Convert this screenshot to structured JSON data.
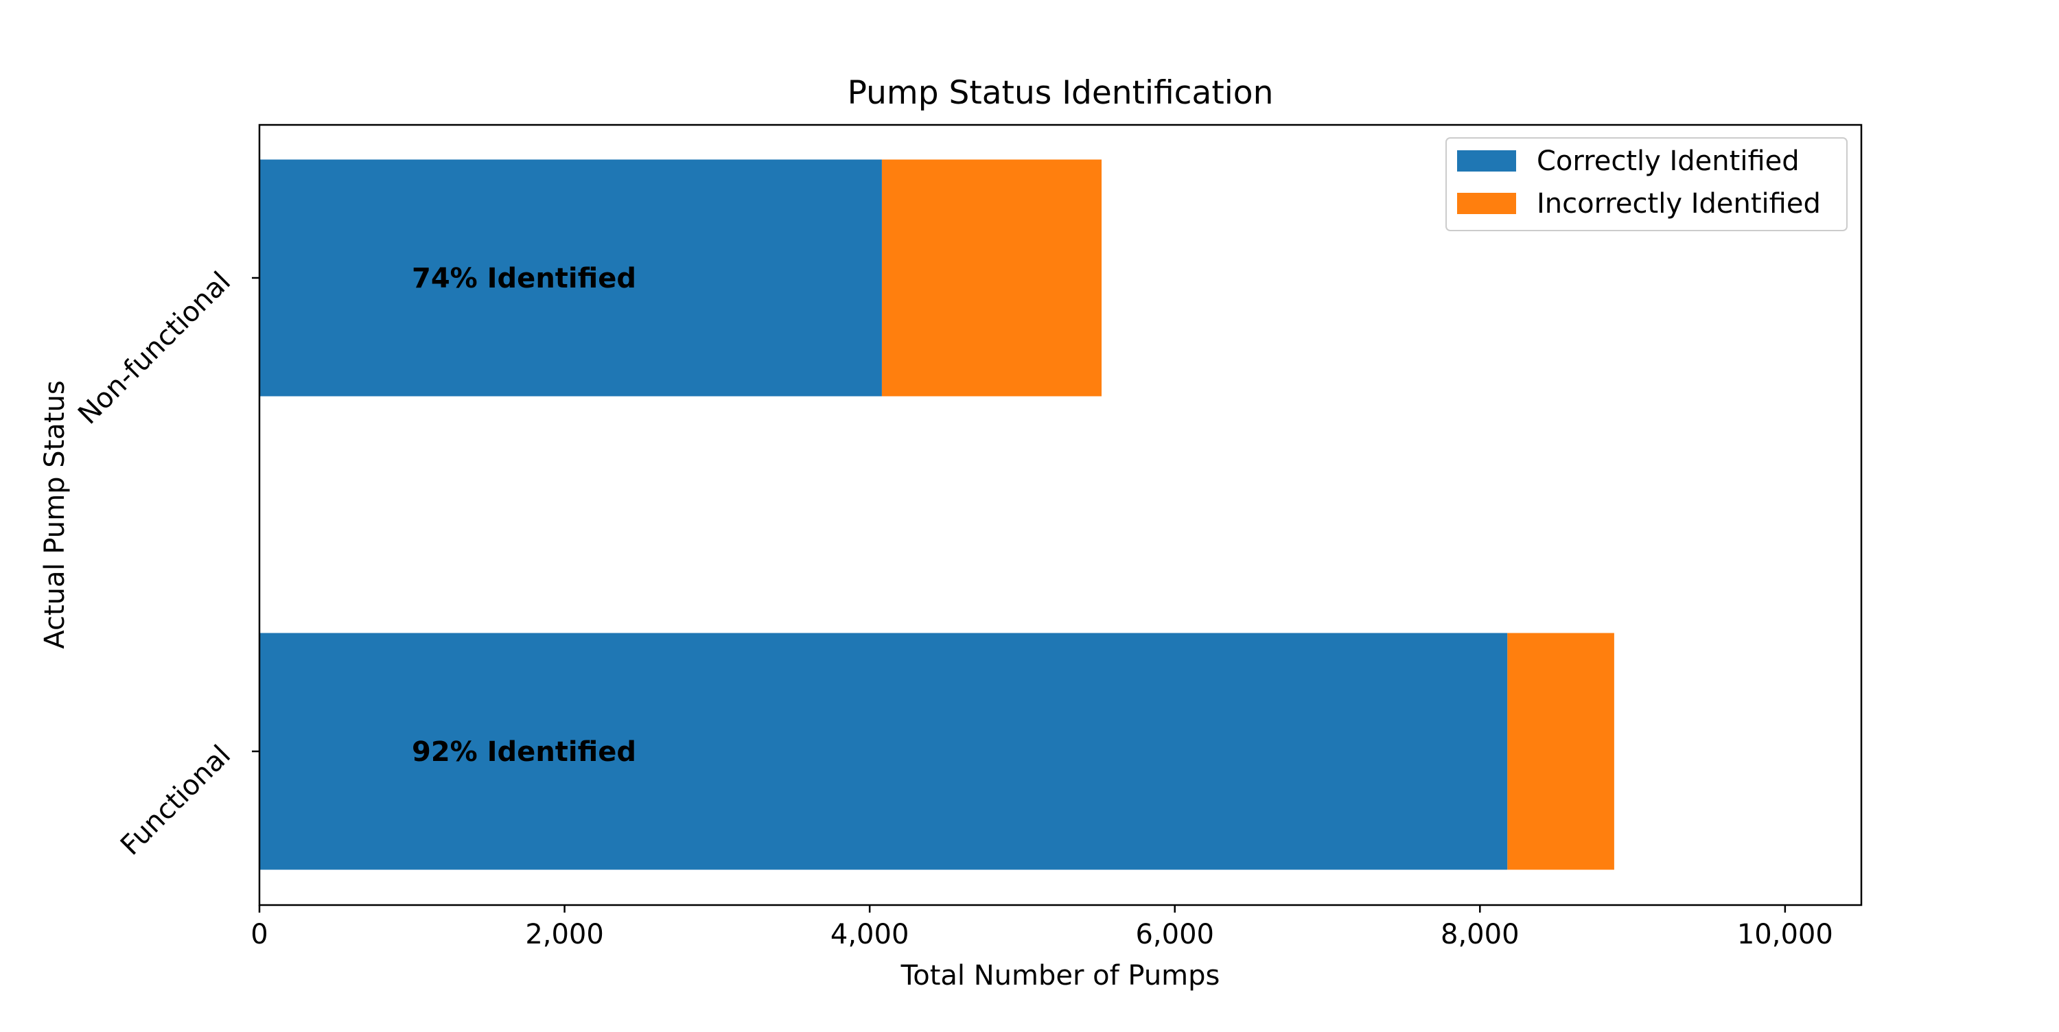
{
  "chart_data": {
    "type": "bar",
    "orientation": "horizontal",
    "stacked": true,
    "title": "Pump Status Identification",
    "xlabel": "Total Number of Pumps",
    "ylabel": "Actual Pump Status",
    "categories": [
      "Functional",
      "Non-functional"
    ],
    "series": [
      {
        "name": "Correctly Identified",
        "color": "#1f77b4",
        "values": [
          8180,
          4080
        ]
      },
      {
        "name": "Incorrectly Identified",
        "color": "#ff7f0e",
        "values": [
          700,
          1440
        ]
      }
    ],
    "annotations": [
      "92% Identified",
      "74% Identified"
    ],
    "xlim": [
      0,
      10500
    ],
    "xticks": [
      0,
      2000,
      4000,
      6000,
      8000,
      10000
    ],
    "xtick_labels": [
      "0",
      "2,000",
      "4,000",
      "6,000",
      "8,000",
      "10,000"
    ],
    "legend_position": "top-right",
    "grid": false
  }
}
